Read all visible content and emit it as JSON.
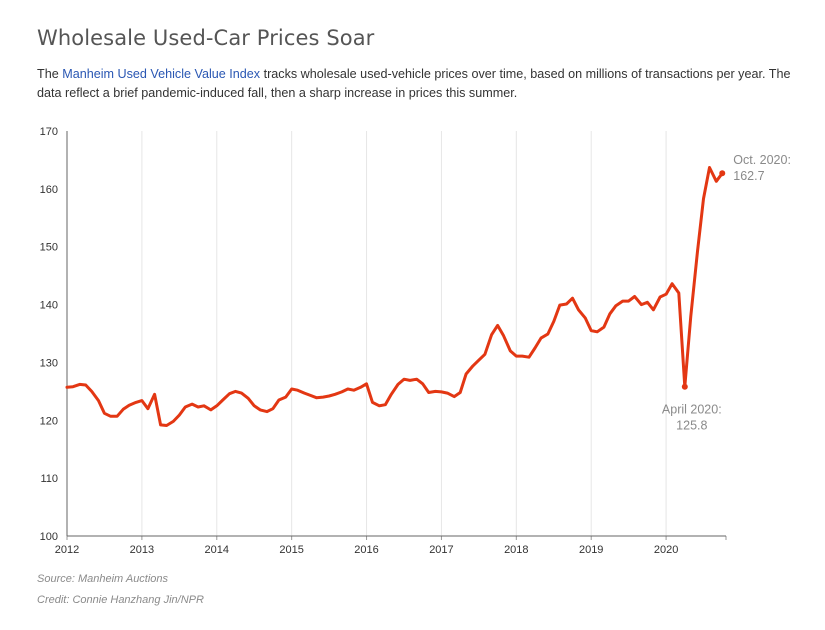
{
  "header": {
    "title": "Wholesale Used-Car Prices Soar",
    "desc_pre": "The ",
    "desc_link": "Manheim Used Vehicle Value Index",
    "desc_post": " tracks wholesale used-vehicle prices over time, based on millions of transactions per year. The data reflect a brief pandemic-induced fall, then a sharp increase in prices this summer.",
    "link_color": "#2a57b3"
  },
  "footer": {
    "source": "Source: Manheim Auctions",
    "credit": "Credit: Connie Hanzhang Jin/NPR"
  },
  "chart_data": {
    "type": "line",
    "title": "",
    "xlabel": "",
    "ylabel": "",
    "xlim": [
      2012,
      2020.8
    ],
    "ylim": [
      100,
      170
    ],
    "x_ticks": [
      "2012",
      "2013",
      "2014",
      "2015",
      "2016",
      "2017",
      "2018",
      "2019",
      "2020"
    ],
    "y_ticks": [
      "100",
      "110",
      "120",
      "130",
      "140",
      "150",
      "160",
      "170"
    ],
    "grid": "vertical",
    "line_color": "#e33713",
    "x": [
      2012.0,
      2012.08,
      2012.17,
      2012.25,
      2012.33,
      2012.42,
      2012.5,
      2012.58,
      2012.67,
      2012.75,
      2012.83,
      2012.92,
      2013.0,
      2013.08,
      2013.17,
      2013.25,
      2013.33,
      2013.42,
      2013.5,
      2013.58,
      2013.67,
      2013.75,
      2013.83,
      2013.92,
      2014.0,
      2014.08,
      2014.17,
      2014.25,
      2014.33,
      2014.42,
      2014.5,
      2014.58,
      2014.67,
      2014.75,
      2014.83,
      2014.92,
      2015.0,
      2015.08,
      2015.17,
      2015.25,
      2015.33,
      2015.42,
      2015.5,
      2015.58,
      2015.67,
      2015.75,
      2015.83,
      2015.92,
      2016.0,
      2016.08,
      2016.17,
      2016.25,
      2016.33,
      2016.42,
      2016.5,
      2016.58,
      2016.67,
      2016.75,
      2016.83,
      2016.92,
      2017.0,
      2017.08,
      2017.17,
      2017.25,
      2017.33,
      2017.42,
      2017.5,
      2017.58,
      2017.67,
      2017.75,
      2017.83,
      2017.92,
      2018.0,
      2018.08,
      2018.17,
      2018.25,
      2018.33,
      2018.42,
      2018.5,
      2018.58,
      2018.67,
      2018.75,
      2018.83,
      2018.92,
      2019.0,
      2019.08,
      2019.17,
      2019.25,
      2019.33,
      2019.42,
      2019.5,
      2019.58,
      2019.67,
      2019.75,
      2019.83,
      2019.92,
      2020.0,
      2020.08,
      2020.17,
      2020.25,
      2020.33,
      2020.42,
      2020.5,
      2020.58,
      2020.67,
      2020.75
    ],
    "series": [
      {
        "values": [
          125.7,
          125.8,
          126.2,
          126.1,
          125.0,
          123.4,
          121.2,
          120.7,
          120.7,
          121.9,
          122.6,
          123.1,
          123.4,
          122.0,
          124.5,
          119.2,
          119.1,
          119.8,
          120.9,
          122.3,
          122.8,
          122.3,
          122.5,
          121.8,
          122.5,
          123.5,
          124.6,
          125.0,
          124.7,
          123.8,
          122.5,
          121.8,
          121.5,
          122.0,
          123.5,
          124.0,
          125.4,
          125.2,
          124.7,
          124.3,
          123.9,
          124.0,
          124.2,
          124.5,
          124.9,
          125.4,
          125.2,
          125.7,
          126.3,
          123.1,
          122.5,
          122.7,
          124.5,
          126.2,
          127.1,
          126.9,
          127.1,
          126.3,
          124.8,
          125.0,
          124.9,
          124.7,
          124.1,
          124.8,
          128.0,
          129.4,
          130.4,
          131.4,
          134.8,
          136.4,
          134.6,
          132.0,
          131.1,
          131.1,
          130.9,
          132.5,
          134.2,
          134.9,
          137.1,
          139.9,
          140.1,
          141.1,
          139.1,
          137.7,
          135.5,
          135.3,
          136.1,
          138.4,
          139.8,
          140.6,
          140.6,
          141.4,
          140.0,
          140.4,
          139.1,
          141.3,
          141.8,
          143.6,
          142.0,
          125.8,
          138.0,
          149.2,
          158.3,
          163.7,
          161.3,
          162.7
        ]
      }
    ],
    "annotations": [
      {
        "label": "Oct. 2020:",
        "value_label": "162.7",
        "x": 2020.75,
        "y": 162.7
      },
      {
        "label": "April 2020:",
        "value_label": "125.8",
        "x": 2020.25,
        "y": 125.8
      }
    ]
  }
}
